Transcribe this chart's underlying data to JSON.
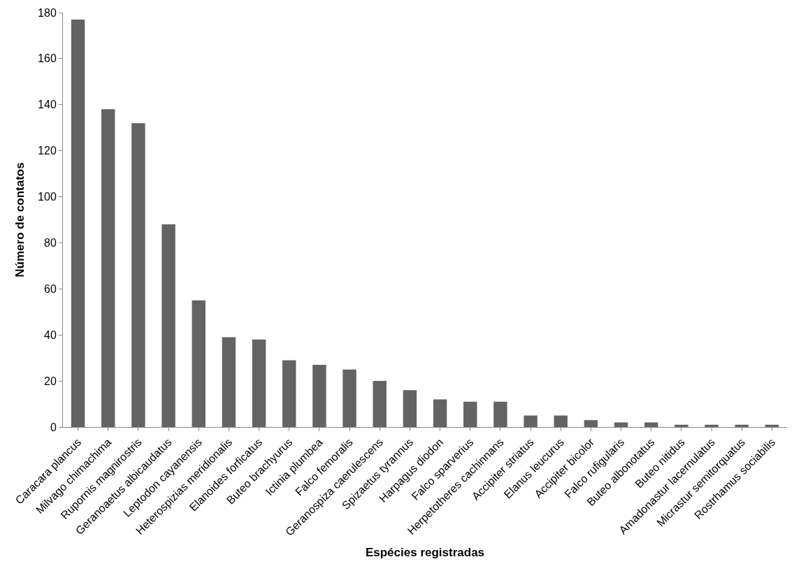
{
  "chart_data": {
    "type": "bar",
    "xlabel": "Espécies registradas",
    "ylabel": "Número de contatos",
    "categories": [
      "Caracara plancus",
      "Milvago chimachima",
      "Rupornis magnirostris",
      "Geranoaetus albicaudatus",
      "Leptodon cayanensis",
      "Heterospizias meridionalis",
      "Elanoides forficatus",
      "Buteo brachyurus",
      "Ictinia plumbea",
      "Falco femoralis",
      "Geranospiza caerulescens",
      "Spizaetus tyrannus",
      "Harpagus diodon",
      "Falco sparverius",
      "Herpetotheres cachinnans",
      "Accipiter striatus",
      "Elanus leucurus",
      "Accipiter bicolor",
      "Falco rufigularis",
      "Buteo albonotatus",
      "Buteo nitidus",
      "Amadonastur lacernulatus",
      "Micrastur semitorquatus",
      "Rostrhamus sociabilis"
    ],
    "values": [
      177,
      138,
      132,
      88,
      55,
      39,
      38,
      29,
      27,
      25,
      20,
      16,
      12,
      11,
      11,
      5,
      5,
      3,
      2,
      2,
      1,
      1,
      1,
      1
    ],
    "color": "#636363",
    "ylim": [
      0,
      180
    ],
    "yticks": [
      0,
      20,
      40,
      60,
      80,
      100,
      120,
      140,
      160,
      180
    ]
  }
}
